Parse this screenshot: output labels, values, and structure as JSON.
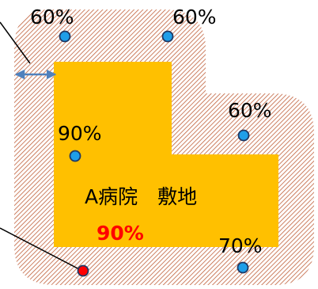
{
  "site_label": "A病院　敷地",
  "site_ratio": {
    "text": "90%",
    "color": "#ff0000"
  },
  "points": [
    {
      "id": "top-left",
      "label": "60%",
      "color": "#1e9ee8"
    },
    {
      "id": "top-right",
      "label": "60%",
      "color": "#1e9ee8"
    },
    {
      "id": "right",
      "label": "60%",
      "color": "#1e9ee8"
    },
    {
      "id": "inner-left",
      "label": "90%",
      "color": "#1e9ee8"
    },
    {
      "id": "bottom-right",
      "label": "70%",
      "color": "#1e9ee8"
    },
    {
      "id": "bottom-left",
      "label": "",
      "color": "#ff0000"
    }
  ],
  "colors": {
    "site_fill": "#ffc000",
    "hatch_line": "#c0603a",
    "arrow": "#4f81bd",
    "point_stroke": "#1f3864"
  }
}
